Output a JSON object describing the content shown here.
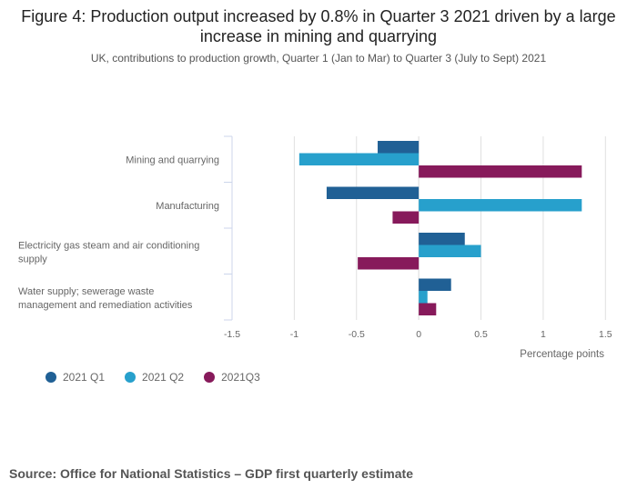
{
  "header": {
    "title": "Figure 4: Production output increased by 0.8% in Quarter 3 2021 driven by a large increase in mining and quarrying",
    "subtitle": "UK, contributions to production growth, Quarter 1 (Jan to Mar) to Quarter 3 (July to Sept) 2021"
  },
  "footer": {
    "source": "Source: Office for National Statistics – GDP first quarterly estimate"
  },
  "chart_data": {
    "type": "bar",
    "orientation": "horizontal",
    "title": "Figure 4: Production output increased by 0.8% in Quarter 3 2021 driven by a large increase in mining and quarrying",
    "subtitle": "UK, contributions to production growth, Quarter 1 (Jan to Mar) to Quarter 3 (July to Sept) 2021",
    "categories": [
      [
        "Mining and quarrying"
      ],
      [
        "Manufacturing"
      ],
      [
        "Electricity gas steam and air conditioning",
        "supply"
      ],
      [
        "Water supply; sewerage waste",
        "management and remediation activities"
      ]
    ],
    "category_names": [
      "Mining and quarrying",
      "Manufacturing",
      "Electricity gas steam and air conditioning supply",
      "Water supply; sewerage waste management and remediation activities"
    ],
    "series": [
      {
        "name": "2021 Q1",
        "color": "#206095",
        "values": [
          -0.33,
          -0.74,
          0.37,
          0.26
        ]
      },
      {
        "name": "2021 Q2",
        "color": "#27a0cc",
        "values": [
          -0.96,
          1.31,
          0.5,
          0.07
        ]
      },
      {
        "name": "2021Q3",
        "color": "#871a5b",
        "values": [
          1.31,
          -0.21,
          -0.49,
          0.14
        ]
      }
    ],
    "xlabel": "Percentage points",
    "ylabel": "",
    "xlim": [
      -1.5,
      1.5
    ],
    "xticks": [
      -1.5,
      -1,
      -0.5,
      0,
      0.5,
      1,
      1.5
    ],
    "xtick_labels": [
      "-1.5",
      "-1",
      "-0.5",
      "0",
      "0.5",
      "1",
      "1.5"
    ],
    "grid": true,
    "legend_position": "bottom-left"
  }
}
